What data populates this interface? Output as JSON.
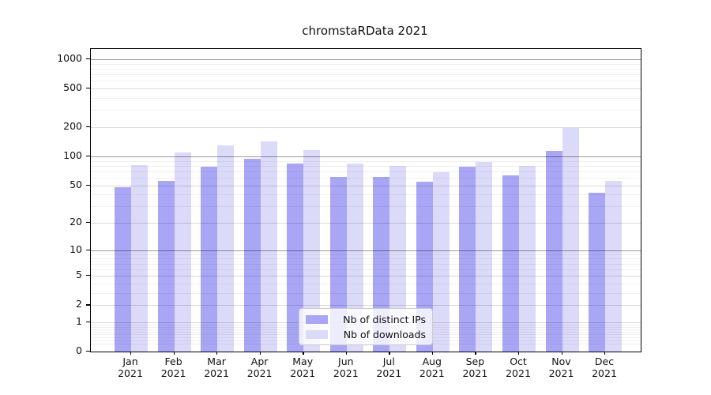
{
  "title": "chromstaRData 2021",
  "legend": {
    "items": [
      {
        "label": "Nb of distinct IPs",
        "color": "#a9a6f5"
      },
      {
        "label": "Nb of downloads",
        "color": "#dcdaf9"
      }
    ]
  },
  "y_axis": {
    "tick_labels": [
      "1000",
      "500",
      "200",
      "100",
      "50",
      "20",
      "10",
      "5",
      "2",
      "1",
      "0"
    ]
  },
  "x_axis": {
    "months": [
      "Jan",
      "Feb",
      "Mar",
      "Apr",
      "May",
      "Jun",
      "Jul",
      "Aug",
      "Sep",
      "Oct",
      "Nov",
      "Dec"
    ],
    "year": "2021"
  },
  "chart_data": {
    "type": "bar",
    "title": "chromstaRData 2021",
    "categories": [
      "Jan 2021",
      "Feb 2021",
      "Mar 2021",
      "Apr 2021",
      "May 2021",
      "Jun 2021",
      "Jul 2021",
      "Aug 2021",
      "Sep 2021",
      "Oct 2021",
      "Nov 2021",
      "Dec 2021"
    ],
    "series": [
      {
        "name": "Nb of distinct IPs",
        "color": "#a9a6f5",
        "values": [
          48,
          55,
          78,
          95,
          84,
          61,
          61,
          54,
          78,
          63,
          114,
          42
        ]
      },
      {
        "name": "Nb of downloads",
        "color": "#dcdaf9",
        "values": [
          81,
          110,
          130,
          142,
          116,
          84,
          80,
          69,
          88,
          79,
          197,
          56
        ]
      }
    ],
    "y_scale": "log10(1+v)",
    "y_ticks": [
      0,
      1,
      2,
      5,
      10,
      20,
      50,
      100,
      200,
      500,
      1000
    ],
    "ylim": [
      0,
      1000
    ],
    "grid": true,
    "legend_position": "bottom-center"
  }
}
